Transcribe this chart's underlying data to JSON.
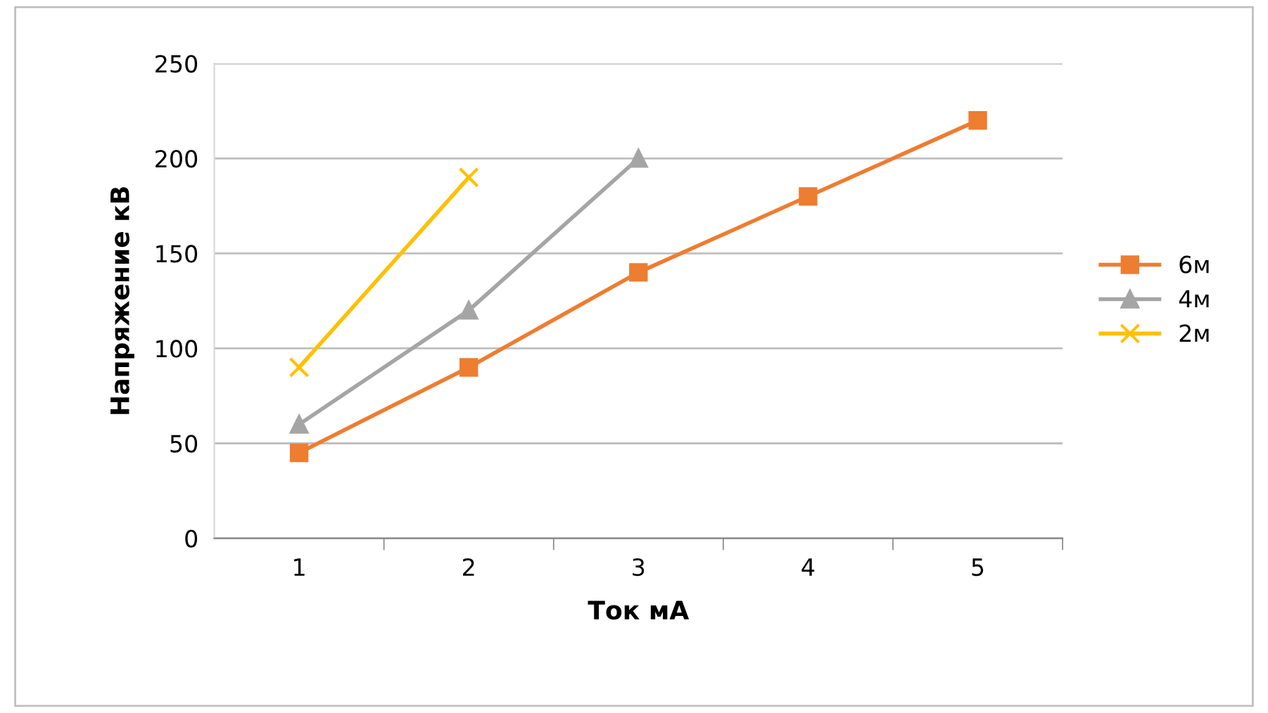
{
  "chart_data": {
    "type": "line",
    "xlabel": "Ток мА",
    "ylabel": "Напряжение кВ",
    "categories": [
      "1",
      "2",
      "3",
      "4",
      "5"
    ],
    "series": [
      {
        "name": "6м",
        "color": "#ed7d31",
        "marker": "square",
        "values": [
          45,
          90,
          140,
          180,
          220
        ]
      },
      {
        "name": "4м",
        "color": "#a5a5a5",
        "marker": "triangle",
        "values": [
          60,
          120,
          200,
          null,
          null
        ]
      },
      {
        "name": "2м",
        "color": "#ffc000",
        "marker": "cross",
        "values": [
          90,
          190,
          null,
          null,
          null
        ]
      }
    ],
    "ylim": [
      0,
      250
    ],
    "yticks": [
      0,
      50,
      100,
      150,
      200,
      250
    ],
    "grid": "y",
    "legend": "right",
    "line_style": "solid"
  }
}
